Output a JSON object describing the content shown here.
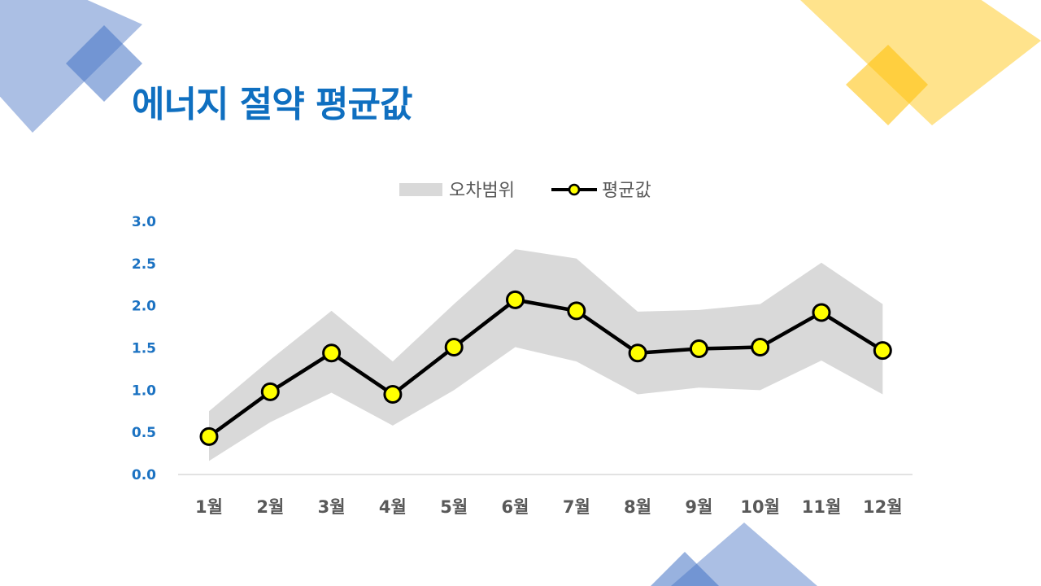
{
  "slide": {
    "title": "에너지 절약 평균값",
    "colors": {
      "title": "#0f6fc0",
      "axis_tick": "#1b72c2",
      "band": "#d9d9d9",
      "line": "#000000",
      "marker_fill": "#ffff00",
      "decor_blue": "#4472c4",
      "decor_yellow": "#ffc000"
    }
  },
  "chart_data": {
    "type": "line",
    "categories": [
      "1월",
      "2월",
      "3월",
      "4월",
      "5월",
      "6월",
      "7월",
      "8월",
      "9월",
      "10월",
      "11월",
      "12월"
    ],
    "series": [
      {
        "name": "평균값",
        "values": [
          0.45,
          0.98,
          1.44,
          0.95,
          1.51,
          2.07,
          1.94,
          1.44,
          1.49,
          1.51,
          1.92,
          1.47
        ]
      }
    ],
    "error_band": {
      "name": "오차범위",
      "upper": [
        0.75,
        1.36,
        1.94,
        1.34,
        2.02,
        2.67,
        2.56,
        1.93,
        1.95,
        2.02,
        2.51,
        2.02
      ],
      "lower": [
        0.16,
        0.62,
        0.97,
        0.58,
        1.0,
        1.51,
        1.34,
        0.95,
        1.03,
        1.0,
        1.35,
        0.95
      ]
    },
    "title": "",
    "xlabel": "",
    "ylabel": "",
    "ylim": [
      0,
      3
    ],
    "yticks": [
      "0.0",
      "0.5",
      "1.0",
      "1.5",
      "2.0",
      "2.5",
      "3.0"
    ],
    "grid": false,
    "legend": {
      "position": "top-center",
      "entries": [
        "오차범위",
        "평균값"
      ]
    }
  }
}
